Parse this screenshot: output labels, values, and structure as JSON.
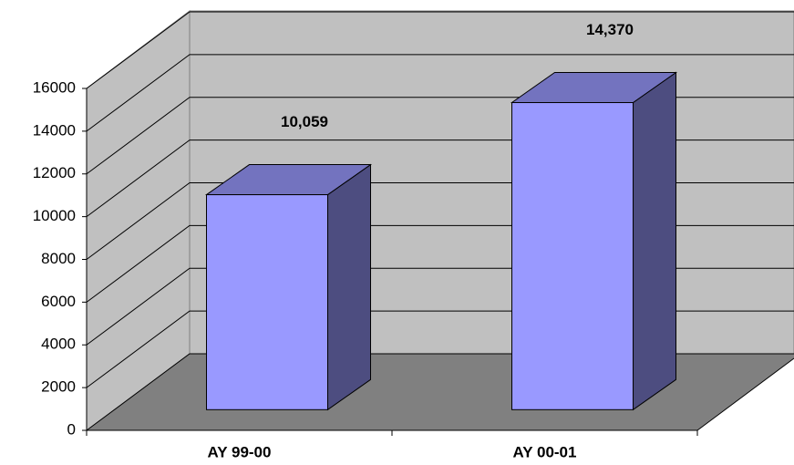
{
  "chart_data": {
    "type": "bar3d",
    "categories": [
      "AY 99-00",
      "AY 00-01"
    ],
    "values": [
      10059,
      14370
    ],
    "value_labels": [
      "10,059",
      "14,370"
    ],
    "color": "#9999ff",
    "ylim": [
      0,
      16000
    ],
    "yticks": [
      0,
      2000,
      4000,
      6000,
      8000,
      10000,
      12000,
      14000,
      16000
    ],
    "grid": true
  }
}
